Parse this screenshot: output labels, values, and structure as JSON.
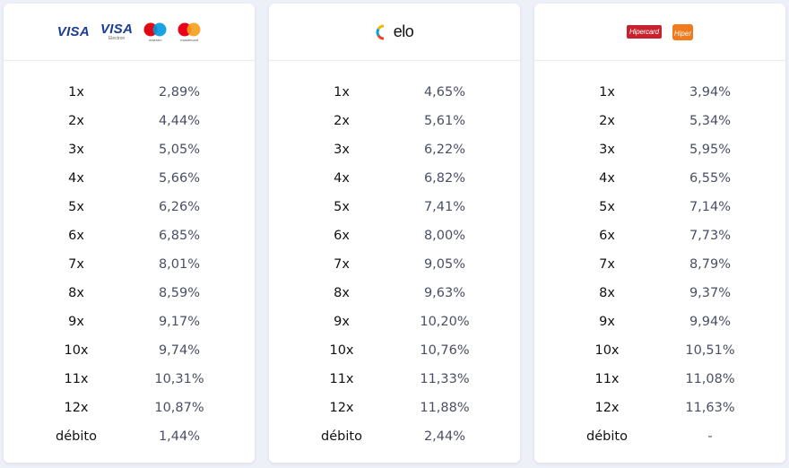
{
  "cards": [
    {
      "logos": {
        "visa": "VISA",
        "visa_electron": "VISA",
        "visa_electron_sub": "Electron",
        "maestro_sub": "maestro",
        "mastercard_sub": "mastercard"
      },
      "rows": [
        {
          "inst": "1x",
          "rate": "2,89%"
        },
        {
          "inst": "2x",
          "rate": "4,44%"
        },
        {
          "inst": "3x",
          "rate": "5,05%"
        },
        {
          "inst": "4x",
          "rate": "5,66%"
        },
        {
          "inst": "5x",
          "rate": "6,26%"
        },
        {
          "inst": "6x",
          "rate": "6,85%"
        },
        {
          "inst": "7x",
          "rate": "8,01%"
        },
        {
          "inst": "8x",
          "rate": "8,59%"
        },
        {
          "inst": "9x",
          "rate": "9,17%"
        },
        {
          "inst": "10x",
          "rate": "9,74%"
        },
        {
          "inst": "11x",
          "rate": "10,31%"
        },
        {
          "inst": "12x",
          "rate": "10,87%"
        },
        {
          "inst": "débito",
          "rate": "1,44%"
        }
      ]
    },
    {
      "logos": {
        "elo": "elo"
      },
      "rows": [
        {
          "inst": "1x",
          "rate": "4,65%"
        },
        {
          "inst": "2x",
          "rate": "5,61%"
        },
        {
          "inst": "3x",
          "rate": "6,22%"
        },
        {
          "inst": "4x",
          "rate": "6,82%"
        },
        {
          "inst": "5x",
          "rate": "7,41%"
        },
        {
          "inst": "6x",
          "rate": "8,00%"
        },
        {
          "inst": "7x",
          "rate": "9,05%"
        },
        {
          "inst": "8x",
          "rate": "9,63%"
        },
        {
          "inst": "9x",
          "rate": "10,20%"
        },
        {
          "inst": "10x",
          "rate": "10,76%"
        },
        {
          "inst": "11x",
          "rate": "11,33%"
        },
        {
          "inst": "12x",
          "rate": "11,88%"
        },
        {
          "inst": "débito",
          "rate": "2,44%"
        }
      ]
    },
    {
      "logos": {
        "hipercard": "Hipercard",
        "hiper": "Hiper"
      },
      "rows": [
        {
          "inst": "1x",
          "rate": "3,94%"
        },
        {
          "inst": "2x",
          "rate": "5,34%"
        },
        {
          "inst": "3x",
          "rate": "5,95%"
        },
        {
          "inst": "4x",
          "rate": "6,55%"
        },
        {
          "inst": "5x",
          "rate": "7,14%"
        },
        {
          "inst": "6x",
          "rate": "7,73%"
        },
        {
          "inst": "7x",
          "rate": "8,79%"
        },
        {
          "inst": "8x",
          "rate": "9,37%"
        },
        {
          "inst": "9x",
          "rate": "9,94%"
        },
        {
          "inst": "10x",
          "rate": "10,51%"
        },
        {
          "inst": "11x",
          "rate": "11,08%"
        },
        {
          "inst": "12x",
          "rate": "11,63%"
        },
        {
          "inst": "débito",
          "rate": "-"
        }
      ]
    }
  ],
  "colors": {
    "background": "#eef0f7",
    "card": "#ffffff",
    "visa_blue": "#1a3d8f",
    "maestro_red": "#e30613",
    "maestro_blue": "#0099df",
    "mastercard_red": "#eb001b",
    "mastercard_orange": "#f79e1b",
    "hipercard_red": "#c8202c",
    "hiper_orange": "#f07a1c"
  }
}
